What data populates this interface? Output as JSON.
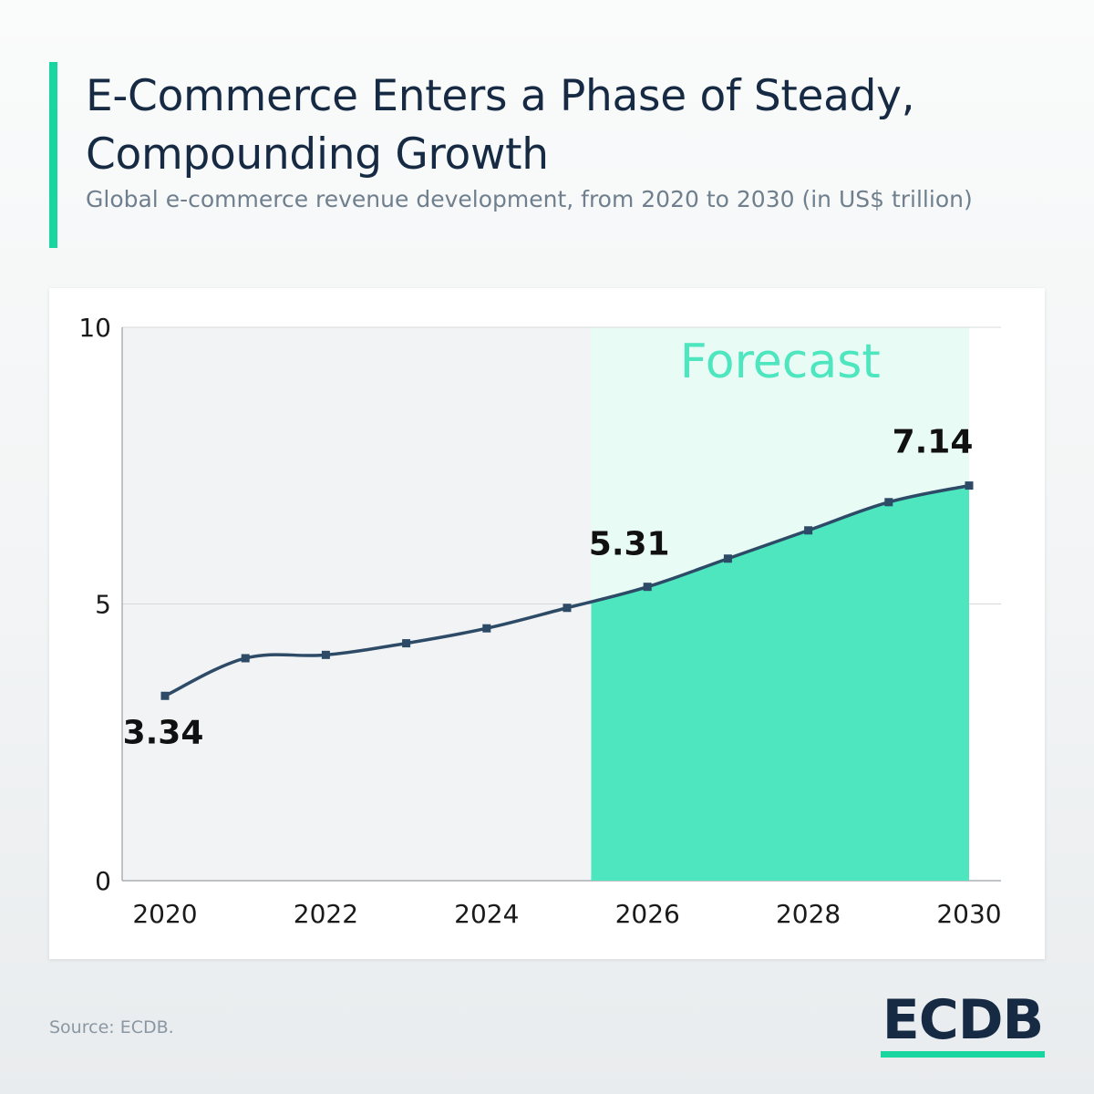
{
  "header": {
    "title": "E-Commerce Enters a Phase of Steady, Compounding Growth",
    "subtitle": "Global e-commerce revenue development, from 2020 to 2030 (in US$ trillion)"
  },
  "footer": {
    "source": "Source: ECDB.",
    "logo": "ECDB"
  },
  "colors": {
    "accent": "#19d6a0",
    "line": "#2d4a66",
    "forecast_fill": "#4de6bf",
    "forecast_bg": "#e9fbf5",
    "forecast_text": "#4de6bf",
    "history_bg": "#f2f3f5",
    "grid": "#d6d8db"
  },
  "chart_data": {
    "type": "line",
    "title": "",
    "xlabel": "",
    "ylabel": "",
    "x": [
      2020,
      2021,
      2022,
      2023,
      2024,
      2025,
      2026,
      2027,
      2028,
      2029,
      2030
    ],
    "series": [
      {
        "values": [
          3.34,
          4.02,
          4.08,
          4.29,
          4.56,
          4.93,
          5.31,
          5.82,
          6.33,
          6.84,
          7.14
        ]
      }
    ],
    "ylim": [
      0,
      10
    ],
    "y_ticks": [
      "0",
      "5",
      "10"
    ],
    "x_ticks": [
      "2020",
      "2022",
      "2024",
      "2026",
      "2028",
      "2030"
    ],
    "grid": true,
    "forecast_region": {
      "label": "Forecast",
      "from": 2025.3,
      "to": 2030
    },
    "data_labels": [
      {
        "x": 2020,
        "text": "3.34"
      },
      {
        "x": 2026,
        "text": "5.31"
      },
      {
        "x": 2030,
        "text": "7.14"
      }
    ]
  }
}
